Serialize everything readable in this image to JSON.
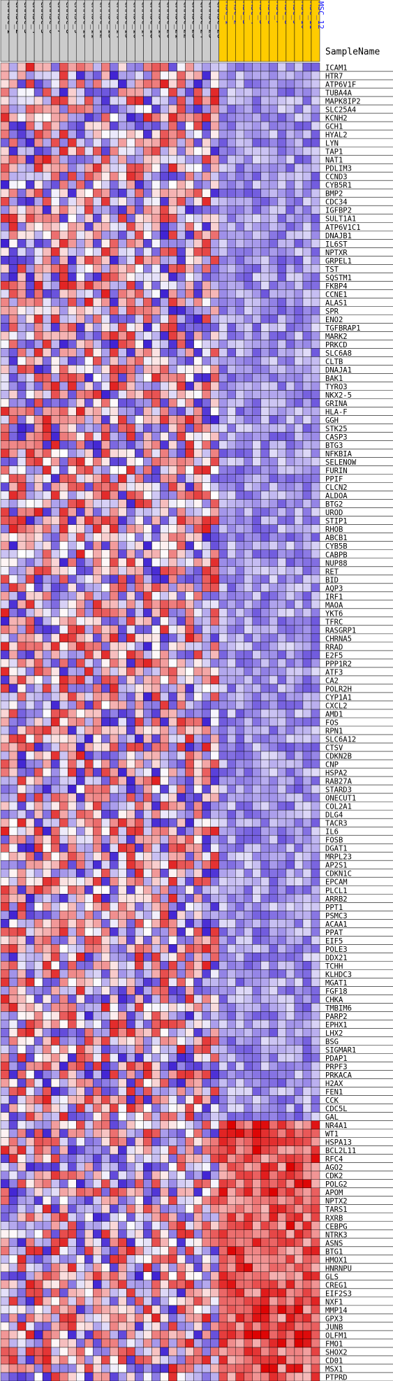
{
  "chart_data": {
    "type": "heatmap",
    "legend_title": "SampleName",
    "columns": [
      {
        "label": "CAMSC_1",
        "group": "CAMSC"
      },
      {
        "label": "CAMSC_2",
        "group": "CAMSC"
      },
      {
        "label": "CAMSC_3",
        "group": "CAMSC"
      },
      {
        "label": "CAMSC_4",
        "group": "CAMSC"
      },
      {
        "label": "CAMSC_5",
        "group": "CAMSC"
      },
      {
        "label": "CAMSC_6",
        "group": "CAMSC"
      },
      {
        "label": "CAMSC_7",
        "group": "CAMSC"
      },
      {
        "label": "CAMSC_8",
        "group": "CAMSC"
      },
      {
        "label": "CAMSC_9",
        "group": "CAMSC"
      },
      {
        "label": "CAMSC_10",
        "group": "CAMSC"
      },
      {
        "label": "CAMSC_11",
        "group": "CAMSC"
      },
      {
        "label": "CAMSC_12",
        "group": "CAMSC"
      },
      {
        "label": "CAMSC_13",
        "group": "CAMSC"
      },
      {
        "label": "CAMSC_14",
        "group": "CAMSC"
      },
      {
        "label": "CAMSC_15",
        "group": "CAMSC"
      },
      {
        "label": "CAMSC_16",
        "group": "CAMSC"
      },
      {
        "label": "CAMSC_17",
        "group": "CAMSC"
      },
      {
        "label": "CAMSC_18",
        "group": "CAMSC"
      },
      {
        "label": "CAMSC_19",
        "group": "CAMSC"
      },
      {
        "label": "CAMSC_20",
        "group": "CAMSC"
      },
      {
        "label": "CAMSC_21",
        "group": "CAMSC"
      },
      {
        "label": "CAMSC_22",
        "group": "CAMSC"
      },
      {
        "label": "CAMSC_23",
        "group": "CAMSC"
      },
      {
        "label": "CAMSC_24",
        "group": "CAMSC"
      },
      {
        "label": "CAMSC_25",
        "group": "CAMSC"
      },
      {
        "label": "CAMSC_26",
        "group": "CAMSC"
      },
      {
        "label": "MSC_1",
        "group": "MSC"
      },
      {
        "label": "MSC_2",
        "group": "MSC"
      },
      {
        "label": "MSC_3",
        "group": "MSC"
      },
      {
        "label": "MSC_4",
        "group": "MSC"
      },
      {
        "label": "MSC_5",
        "group": "MSC"
      },
      {
        "label": "MSC_6",
        "group": "MSC"
      },
      {
        "label": "MSC_7",
        "group": "MSC"
      },
      {
        "label": "MSC_8",
        "group": "MSC"
      },
      {
        "label": "MSC_9",
        "group": "MSC"
      },
      {
        "label": "MSC_10",
        "group": "MSC"
      },
      {
        "label": "MSC_11",
        "group": "MSC"
      },
      {
        "label": "MSC_12",
        "group": "MSC"
      }
    ],
    "rows": [
      "ICAM1",
      "HTR7",
      "ATP6V1F",
      "TUBA4A",
      "MAPK8IP2",
      "SLC25A4",
      "KCNH2",
      "GCH1",
      "HYAL2",
      "LYN",
      "TAP1",
      "NAT1",
      "PDLIM3",
      "CCND3",
      "CYB5R1",
      "BMP2",
      "CDC34",
      "IGFBP2",
      "SULT1A1",
      "ATP6V1C1",
      "DNAJB1",
      "IL6ST",
      "NPTXR",
      "GRPEL1",
      "TST",
      "SQSTM1",
      "FKBP4",
      "CCNE1",
      "ALAS1",
      "SPR",
      "ENO2",
      "TGFBRAP1",
      "MARK2",
      "PRKCD",
      "SLC6A8",
      "CLTB",
      "DNAJA1",
      "BAK1",
      "TYRO3",
      "NKX2-5",
      "GRINA",
      "HLA-F",
      "GGH",
      "STK25",
      "CASP3",
      "BTG3",
      "NFKBIA",
      "SELENOW",
      "FURIN",
      "PPIF",
      "CLCN2",
      "ALDOA",
      "BTG2",
      "UROD",
      "STIP1",
      "RHOB",
      "ABCB1",
      "CYB5B",
      "CABPB",
      "NUP88",
      "RET",
      "BID",
      "AQP3",
      "IRF1",
      "MAOA",
      "YKT6",
      "TFRC",
      "RASGRP1",
      "CHRNA5",
      "RRAD",
      "E2F5",
      "PPP1R2",
      "ATF3",
      "CA2",
      "POLR2H",
      "CYP1A1",
      "CXCL2",
      "AMD1",
      "FOS",
      "RPN1",
      "SLC6A12",
      "CTSV",
      "CDKN2B",
      "CNP",
      "HSPA2",
      "RAB27A",
      "STARD3",
      "ONECUT1",
      "COL2A1",
      "DLG4",
      "TACR3",
      "IL6",
      "FOSB",
      "DGAT1",
      "MRPL23",
      "AP2S1",
      "CDKN1C",
      "EPCAM",
      "PLCL1",
      "ARRB2",
      "PPT1",
      "PSMC3",
      "ACAA1",
      "PPAT",
      "EIF5",
      "POLE3",
      "DDX21",
      "TCHH",
      "KLHDC3",
      "MGAT1",
      "FGF18",
      "CHKA",
      "TMBIM6",
      "PARP2",
      "EPHX1",
      "LHX2",
      "BSG",
      "SIGMAR1",
      "PDAP1",
      "PRPF3",
      "PRKACA",
      "H2AX",
      "FEN1",
      "CCK",
      "CDC5L",
      "GAL",
      "NR4A1",
      "WT1",
      "HSPA13",
      "BCL2L11",
      "RFC4",
      "AGO2",
      "CDK2",
      "POLG2",
      "APOM",
      "NPTX2",
      "TARS1",
      "RXRB",
      "CEBPG",
      "NTRK3",
      "ASNS",
      "BTG1",
      "HMOX1",
      "HNRNPU",
      "GLS",
      "CREG1",
      "EIF2S3",
      "NXF1",
      "MMP14",
      "GPX3",
      "JUNB",
      "OLFM1",
      "FMO1",
      "SHOX2",
      "CD01",
      "MSX1",
      "PTPRD"
    ],
    "value_range": [
      -3,
      3
    ],
    "color_low": "#2200cc",
    "color_mid": "#ffffff",
    "color_high": "#dd0000",
    "camsc_header_color": "#cccccc",
    "msc_header_color": "#ffcc00",
    "grid_color": "#000000"
  }
}
